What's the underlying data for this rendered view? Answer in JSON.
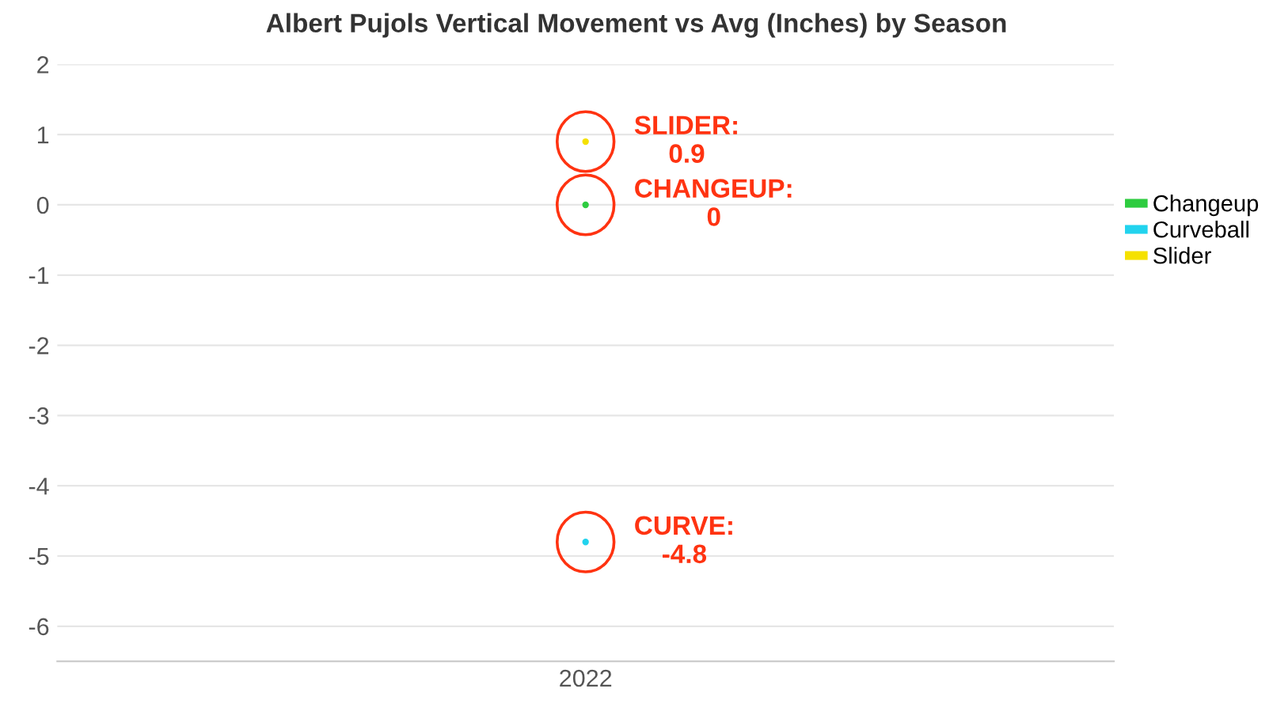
{
  "chart_data": {
    "type": "line",
    "title": "Albert Pujols Vertical Movement vs Avg (Inches) by Season",
    "categories": [
      "2022"
    ],
    "series": [
      {
        "name": "Changeup",
        "color": "#2ecc40",
        "values": [
          0
        ]
      },
      {
        "name": "Curveball",
        "color": "#22d3ee",
        "values": [
          -4.8
        ]
      },
      {
        "name": "Slider",
        "color": "#f5e100",
        "values": [
          0.9
        ]
      }
    ],
    "ylim": [
      -6.5,
      2
    ],
    "yticks": [
      -6,
      -5,
      -4,
      -3,
      -2,
      -1,
      0,
      1,
      2
    ],
    "grid": "y",
    "legend": "right",
    "marker": "circle",
    "annotations": [
      {
        "text": "SLIDER:\n0.9",
        "x": "2022",
        "y": 0.9
      },
      {
        "text": "CHANGEUP:\n0",
        "x": "2022",
        "y": 0
      },
      {
        "text": "CURVE:\n-4.8",
        "x": "2022",
        "y": -4.8
      }
    ]
  }
}
